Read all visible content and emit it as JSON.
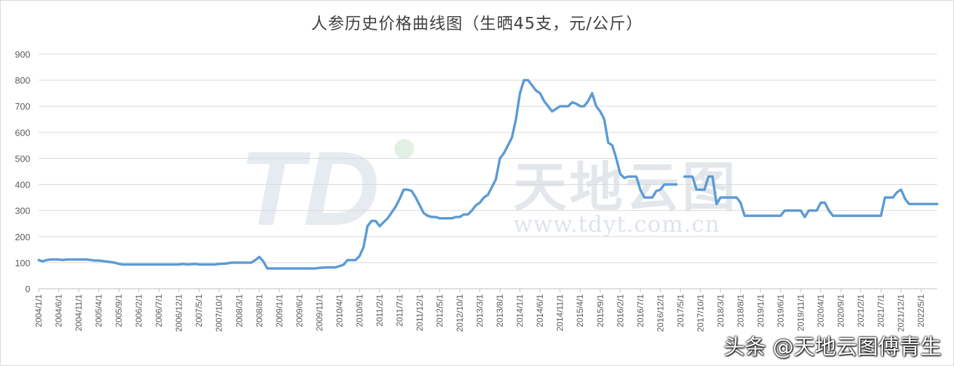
{
  "chart_data": {
    "type": "line",
    "title": "人参历史价格曲线图（生晒45支，元/公斤）",
    "xlabel": "",
    "ylabel": "",
    "ylim": [
      0,
      900
    ],
    "yticks": [
      0,
      100,
      200,
      300,
      400,
      500,
      600,
      700,
      800,
      900
    ],
    "grid": true,
    "legend": "none",
    "line_color": "#5b9bd5",
    "x_tick_labels": [
      "2004/1/1",
      "2004/6/1",
      "2004/11/1",
      "2005/4/1",
      "2005/9/1",
      "2006/2/1",
      "2006/7/1",
      "2006/12/1",
      "2007/5/1",
      "2007/10/1",
      "2008/3/1",
      "2008/8/1",
      "2009/1/1",
      "2009/6/1",
      "2009/11/1",
      "2010/4/1",
      "2010/9/1",
      "2011/2/1",
      "2011/7/1",
      "2011/12/1",
      "2012/5/1",
      "2012/10/1",
      "2013/3/1",
      "2013/8/1",
      "2014/1/1",
      "2014/6/1",
      "2014/11/1",
      "2015/4/1",
      "2015/9/1",
      "2016/2/1",
      "2016/7/1",
      "2016/12/1",
      "2017/5/1",
      "2017/10/1",
      "2018/3/1",
      "2018/8/1",
      "2019/1/1",
      "2019/6/1",
      "2019/11/1",
      "2020/4/1",
      "2020/9/1",
      "2021/2/1",
      "2021/7/1",
      "2021/12/1",
      "2022/5/1"
    ],
    "series": [
      {
        "points": [
          [
            "2004/1/1",
            110
          ],
          [
            "2004/2/1",
            105
          ],
          [
            "2004/3/1",
            110
          ],
          [
            "2004/4/1",
            112
          ],
          [
            "2004/6/1",
            112
          ],
          [
            "2004/7/1",
            110
          ],
          [
            "2004/8/1",
            112
          ],
          [
            "2004/11/1",
            112
          ],
          [
            "2005/1/1",
            112
          ],
          [
            "2005/3/1",
            108
          ],
          [
            "2005/4/1",
            108
          ],
          [
            "2005/6/1",
            104
          ],
          [
            "2005/8/1",
            100
          ],
          [
            "2005/9/1",
            95
          ],
          [
            "2005/10/1",
            93
          ],
          [
            "2006/6/1",
            93
          ],
          [
            "2006/12/1",
            93
          ],
          [
            "2007/1/1",
            95
          ],
          [
            "2007/2/1",
            93
          ],
          [
            "2007/4/1",
            95
          ],
          [
            "2007/5/1",
            93
          ],
          [
            "2007/9/1",
            93
          ],
          [
            "2007/10/1",
            95
          ],
          [
            "2007/12/1",
            97
          ],
          [
            "2008/1/1",
            100
          ],
          [
            "2008/3/1",
            100
          ],
          [
            "2008/6/1",
            100
          ],
          [
            "2008/7/1",
            110
          ],
          [
            "2008/8/1",
            122
          ],
          [
            "2008/9/1",
            105
          ],
          [
            "2008/10/1",
            78
          ],
          [
            "2009/1/1",
            78
          ],
          [
            "2009/6/1",
            78
          ],
          [
            "2009/10/1",
            78
          ],
          [
            "2009/11/1",
            80
          ],
          [
            "2010/1/1",
            82
          ],
          [
            "2010/3/1",
            82
          ],
          [
            "2010/5/1",
            92
          ],
          [
            "2010/6/1",
            110
          ],
          [
            "2010/8/1",
            110
          ],
          [
            "2010/9/1",
            125
          ],
          [
            "2010/10/1",
            160
          ],
          [
            "2010/11/1",
            240
          ],
          [
            "2010/12/1",
            260
          ],
          [
            "2011/1/1",
            260
          ],
          [
            "2011/2/1",
            240
          ],
          [
            "2011/4/1",
            270
          ],
          [
            "2011/6/1",
            315
          ],
          [
            "2011/7/1",
            345
          ],
          [
            "2011/8/1",
            380
          ],
          [
            "2011/9/1",
            380
          ],
          [
            "2011/10/1",
            375
          ],
          [
            "2011/11/1",
            350
          ],
          [
            "2011/12/1",
            320
          ],
          [
            "2012/1/1",
            290
          ],
          [
            "2012/2/1",
            280
          ],
          [
            "2012/3/1",
            275
          ],
          [
            "2012/4/1",
            275
          ],
          [
            "2012/5/1",
            270
          ],
          [
            "2012/8/1",
            270
          ],
          [
            "2012/9/1",
            275
          ],
          [
            "2012/10/1",
            275
          ],
          [
            "2012/11/1",
            285
          ],
          [
            "2012/12/1",
            285
          ],
          [
            "2013/1/1",
            300
          ],
          [
            "2013/2/1",
            320
          ],
          [
            "2013/3/1",
            330
          ],
          [
            "2013/4/1",
            350
          ],
          [
            "2013/5/1",
            360
          ],
          [
            "2013/6/1",
            390
          ],
          [
            "2013/7/1",
            420
          ],
          [
            "2013/8/1",
            500
          ],
          [
            "2013/9/1",
            520
          ],
          [
            "2013/10/1",
            550
          ],
          [
            "2013/11/1",
            580
          ],
          [
            "2013/12/1",
            650
          ],
          [
            "2014/1/1",
            750
          ],
          [
            "2014/2/1",
            800
          ],
          [
            "2014/3/1",
            800
          ],
          [
            "2014/4/1",
            780
          ],
          [
            "2014/5/1",
            760
          ],
          [
            "2014/6/1",
            750
          ],
          [
            "2014/7/1",
            720
          ],
          [
            "2014/8/1",
            700
          ],
          [
            "2014/9/1",
            680
          ],
          [
            "2014/10/1",
            690
          ],
          [
            "2014/11/1",
            700
          ],
          [
            "2015/1/1",
            700
          ],
          [
            "2015/2/1",
            715
          ],
          [
            "2015/3/1",
            710
          ],
          [
            "2015/4/1",
            700
          ],
          [
            "2015/5/1",
            700
          ],
          [
            "2015/6/1",
            720
          ],
          [
            "2015/7/1",
            750
          ],
          [
            "2015/8/1",
            700
          ],
          [
            "2015/9/1",
            680
          ],
          [
            "2015/10/1",
            650
          ],
          [
            "2015/11/1",
            560
          ],
          [
            "2015/12/1",
            550
          ],
          [
            "2016/1/1",
            500
          ],
          [
            "2016/2/1",
            440
          ],
          [
            "2016/3/1",
            425
          ],
          [
            "2016/4/1",
            430
          ],
          [
            "2016/6/1",
            430
          ],
          [
            "2016/7/1",
            380
          ],
          [
            "2016/8/1",
            350
          ],
          [
            "2016/10/1",
            350
          ],
          [
            "2016/11/1",
            375
          ],
          [
            "2016/12/1",
            380
          ],
          [
            "2017/1/1",
            400
          ],
          [
            "2017/3/1",
            400
          ],
          [
            "2017/4/1",
            400
          ],
          null,
          [
            "2017/6/1",
            430
          ],
          [
            "2017/8/1",
            430
          ],
          [
            "2017/9/1",
            380
          ],
          [
            "2017/11/1",
            380
          ],
          [
            "2017/12/1",
            430
          ],
          [
            "2018/1/1",
            430
          ],
          [
            "2018/2/1",
            325
          ],
          [
            "2018/3/1",
            350
          ],
          [
            "2018/7/1",
            350
          ],
          [
            "2018/8/1",
            330
          ],
          [
            "2018/9/1",
            280
          ],
          [
            "2019/6/1",
            280
          ],
          [
            "2019/7/1",
            300
          ],
          [
            "2019/11/1",
            300
          ],
          [
            "2019/12/1",
            275
          ],
          [
            "2020/1/1",
            300
          ],
          [
            "2020/3/1",
            300
          ],
          [
            "2020/4/1",
            330
          ],
          [
            "2020/5/1",
            330
          ],
          [
            "2020/6/1",
            300
          ],
          [
            "2020/7/1",
            280
          ],
          [
            "2021/7/1",
            280
          ],
          [
            "2021/8/1",
            350
          ],
          [
            "2021/10/1",
            350
          ],
          [
            "2021/11/1",
            370
          ],
          [
            "2021/12/1",
            380
          ],
          [
            "2022/1/1",
            345
          ],
          [
            "2022/2/1",
            325
          ],
          [
            "2022/9/1",
            325
          ]
        ]
      }
    ]
  },
  "watermark": {
    "brand_text": "天地云图",
    "url_text": "www.tdyt.com.cn",
    "logo_text": "TD"
  },
  "credit": "头条 @天地云图傅青生"
}
